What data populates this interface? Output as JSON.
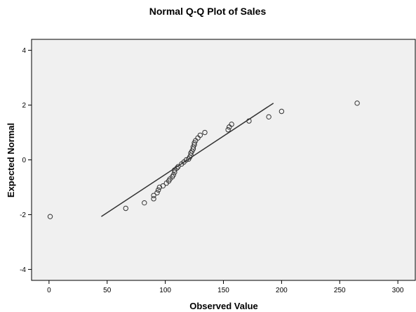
{
  "chart_data": {
    "type": "scatter",
    "title": "Normal Q-Q Plot of Sales",
    "xlabel": "Observed Value",
    "ylabel": "Expected Normal",
    "xlim": [
      -15,
      315
    ],
    "ylim": [
      -4.4,
      4.4
    ],
    "xticks": [
      0,
      50,
      100,
      150,
      200,
      250,
      300
    ],
    "yticks": [
      -4,
      -2,
      0,
      2,
      4
    ],
    "grid": false,
    "reference_line": {
      "x": [
        45,
        193
      ],
      "y": [
        -2.07,
        2.07
      ]
    },
    "points": [
      {
        "x": 1,
        "y": -2.07
      },
      {
        "x": 66,
        "y": -1.77
      },
      {
        "x": 82,
        "y": -1.57
      },
      {
        "x": 90,
        "y": -1.42
      },
      {
        "x": 90,
        "y": -1.3
      },
      {
        "x": 93,
        "y": -1.2
      },
      {
        "x": 94,
        "y": -1.1
      },
      {
        "x": 95,
        "y": -1.0
      },
      {
        "x": 98,
        "y": -0.95
      },
      {
        "x": 101,
        "y": -0.85
      },
      {
        "x": 103,
        "y": -0.77
      },
      {
        "x": 104,
        "y": -0.7
      },
      {
        "x": 106,
        "y": -0.62
      },
      {
        "x": 107,
        "y": -0.55
      },
      {
        "x": 108,
        "y": -0.45
      },
      {
        "x": 108,
        "y": -0.37
      },
      {
        "x": 110,
        "y": -0.3
      },
      {
        "x": 111,
        "y": -0.25
      },
      {
        "x": 114,
        "y": -0.15
      },
      {
        "x": 116,
        "y": -0.08
      },
      {
        "x": 118,
        "y": 0.0
      },
      {
        "x": 120,
        "y": 0.03
      },
      {
        "x": 121,
        "y": 0.1
      },
      {
        "x": 122,
        "y": 0.17
      },
      {
        "x": 122,
        "y": 0.25
      },
      {
        "x": 123,
        "y": 0.32
      },
      {
        "x": 124,
        "y": 0.4
      },
      {
        "x": 124,
        "y": 0.47
      },
      {
        "x": 125,
        "y": 0.55
      },
      {
        "x": 125,
        "y": 0.62
      },
      {
        "x": 126,
        "y": 0.7
      },
      {
        "x": 128,
        "y": 0.8
      },
      {
        "x": 130,
        "y": 0.9
      },
      {
        "x": 134,
        "y": 1.0
      },
      {
        "x": 154,
        "y": 1.1
      },
      {
        "x": 155,
        "y": 1.2
      },
      {
        "x": 157,
        "y": 1.3
      },
      {
        "x": 172,
        "y": 1.42
      },
      {
        "x": 189,
        "y": 1.57
      },
      {
        "x": 200,
        "y": 1.77
      },
      {
        "x": 265,
        "y": 2.07
      }
    ]
  }
}
